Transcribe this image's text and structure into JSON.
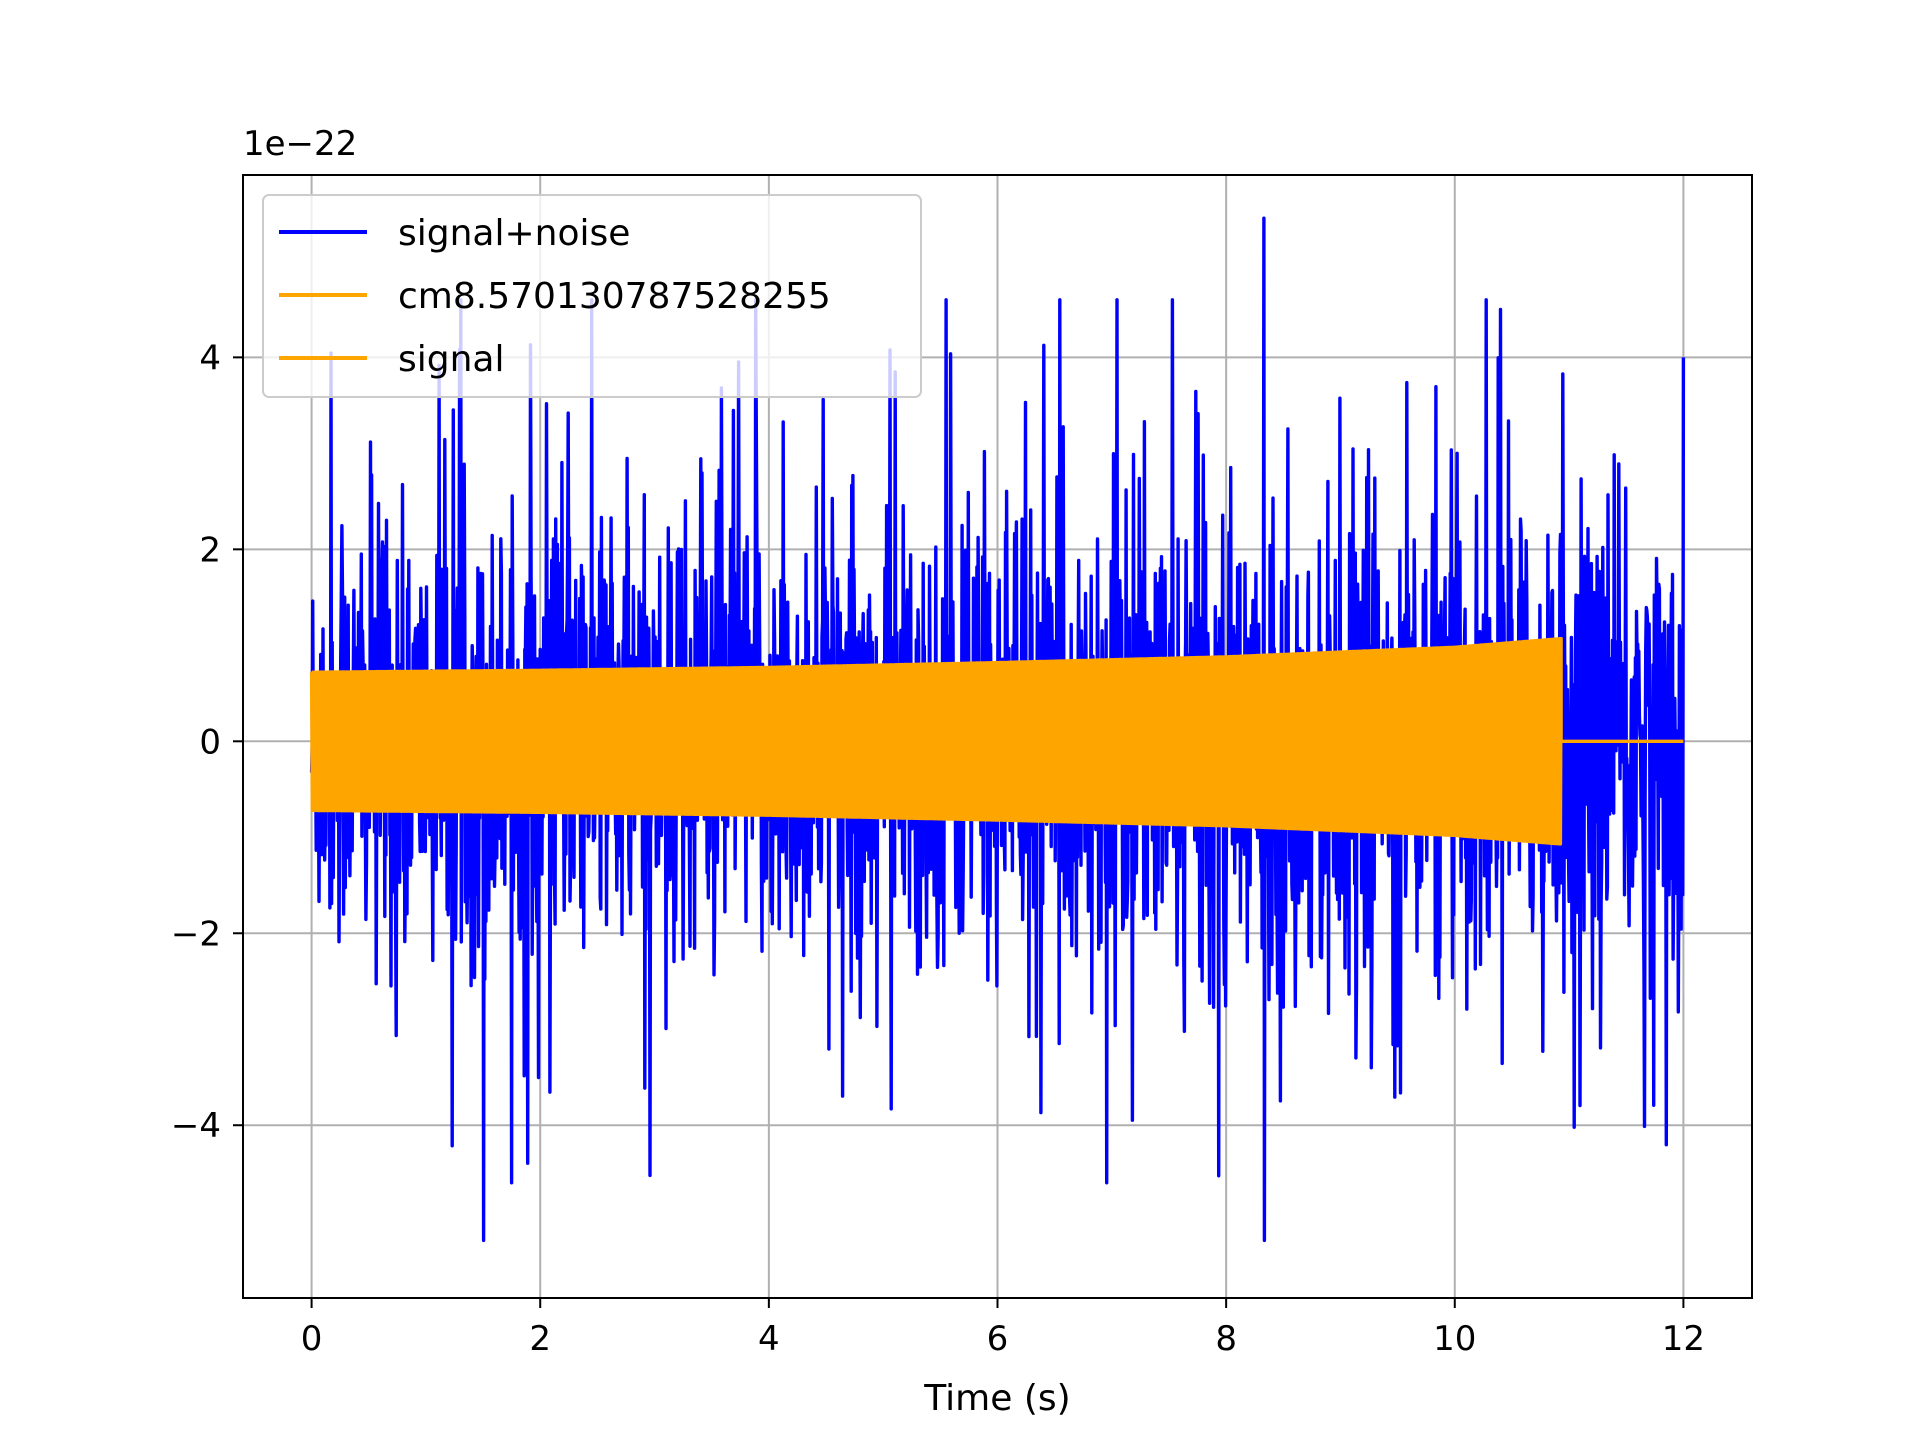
{
  "chart_data": {
    "type": "line",
    "title": "",
    "xlabel": "Time (s)",
    "ylabel": "",
    "y_offset_label": "1e−22",
    "xlim": [
      -0.6,
      12.6
    ],
    "ylim": [
      -5.8,
      5.9
    ],
    "x_ticks": [
      0,
      2,
      4,
      6,
      8,
      10,
      12
    ],
    "y_ticks": [
      -4,
      -2,
      0,
      2,
      4
    ],
    "x_tick_labels": [
      "0",
      "2",
      "4",
      "6",
      "8",
      "10",
      "12"
    ],
    "y_tick_labels": [
      "−4",
      "−2",
      "0",
      "2",
      "4"
    ],
    "grid": true,
    "legend_position": "top-left",
    "series": [
      {
        "name": "signal+noise",
        "color": "#0000ff",
        "t_range": [
          0,
          12
        ],
        "description_envelope": [
          [
            0,
            1.5
          ],
          [
            2,
            1.6
          ],
          [
            4,
            1.6
          ],
          [
            6,
            1.5
          ],
          [
            8,
            1.6
          ],
          [
            10,
            1.6
          ],
          [
            12,
            1.6
          ]
        ],
        "notable_extrema": [
          {
            "t": 8.33,
            "y": 5.45
          },
          {
            "t": 8.33,
            "y": -5.2
          },
          {
            "t": 1.5,
            "y": -5.2
          },
          {
            "t": 5.55,
            "y": 4.6
          },
          {
            "t": 10.4,
            "y": 4.5
          },
          {
            "t": 6.95,
            "y": -4.6
          },
          {
            "t": 12.0,
            "y": 4.0
          }
        ]
      },
      {
        "name": "cm8.570130787528255",
        "color": "#ffa500",
        "t_range": [
          0,
          0
        ],
        "envelope": []
      },
      {
        "name": "signal",
        "color": "#ffa500",
        "t_range": [
          0,
          10.93
        ],
        "envelope": [
          [
            0,
            0.72
          ],
          [
            2,
            0.74
          ],
          [
            4,
            0.77
          ],
          [
            6,
            0.82
          ],
          [
            8,
            0.88
          ],
          [
            10,
            0.98
          ],
          [
            10.93,
            1.07
          ]
        ],
        "after": {
          "t_range": [
            10.93,
            12
          ],
          "value": 0
        }
      }
    ]
  }
}
